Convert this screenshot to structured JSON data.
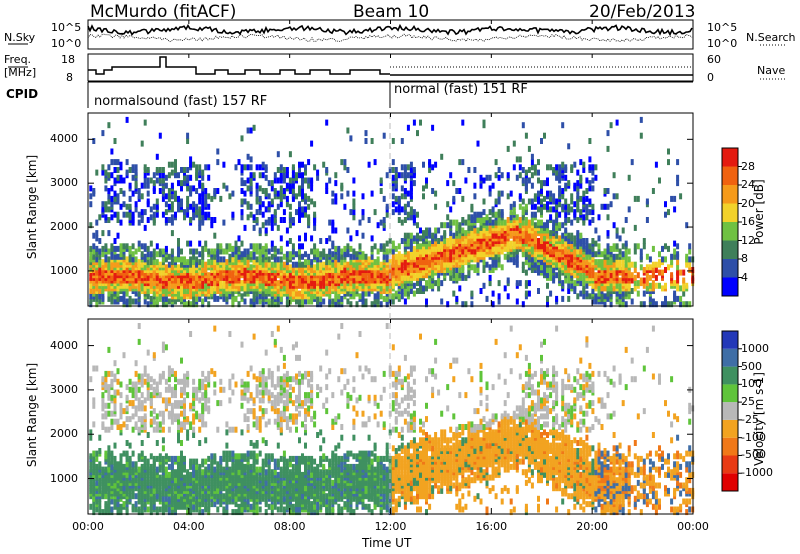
{
  "header": {
    "station": "McMurdo (fitACF)",
    "beam": "Beam 10",
    "date": "20/Feb/2013"
  },
  "labels": {
    "nsky": "N.Sky",
    "freq": "Freq.",
    "mhz": "[MHz]",
    "cpid": "CPID",
    "nsearch": "N.Search",
    "nave": "Nave",
    "sky_hi": "10^5",
    "sky_lo": "10^0",
    "search_hi": "10^5",
    "search_lo": "10^0",
    "freq_hi": "18",
    "freq_lo": "8",
    "nave_hi": "60",
    "nave_lo": "0",
    "cpid1": "normalsound (fast) 157 RF",
    "cpid2": "normal (fast) 151 RF"
  },
  "chart_data": [
    {
      "type": "heatmap",
      "title": "",
      "ylabel": "Slant Range [km]",
      "xlabel": "",
      "ylim": [
        200,
        4600
      ],
      "yticks": [
        "1000",
        "2000",
        "3000",
        "4000"
      ],
      "colorbar_label": "Power [dB]",
      "colorbar_ticks": [
        "4",
        "8",
        "12",
        "16",
        "20",
        "24",
        "28"
      ],
      "colors": [
        "#0000ff",
        "#2e4fa8",
        "#3f7f5a",
        "#6fc142",
        "#f2d22a",
        "#f59a1a",
        "#f0620f",
        "#e41b10"
      ]
    },
    {
      "type": "heatmap",
      "title": "",
      "ylabel": "Slant Range [km]",
      "xlabel": "Time UT",
      "ylim": [
        200,
        4600
      ],
      "yticks": [
        "1000",
        "2000",
        "3000",
        "4000"
      ],
      "xticks": [
        "00:00",
        "04:00",
        "08:00",
        "12:00",
        "16:00",
        "20:00",
        "00:00"
      ],
      "colorbar_label": "Velocity [m s-1]",
      "colorbar_ticks": [
        "1000",
        "500",
        "100",
        "25",
        "-25",
        "-100",
        "-500",
        "-1000"
      ],
      "colors": [
        "#2338b8",
        "#3f6ea6",
        "#3f9060",
        "#5fc43a",
        "#b8b8b8",
        "#f2a320",
        "#f07818",
        "#e83a14",
        "#e00000"
      ]
    }
  ]
}
